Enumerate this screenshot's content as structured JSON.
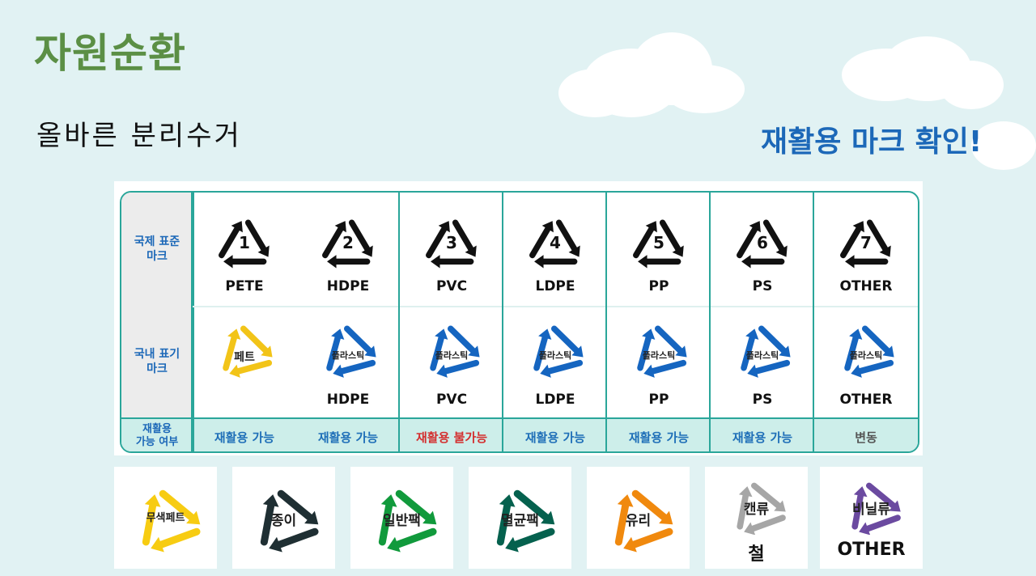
{
  "title": "자원순환",
  "subtitle": "올바른 분리수거",
  "callout": "재활용 마크 확인!",
  "table": {
    "row_labels": {
      "international": "국제 표준\n마크",
      "domestic": "국내 표기\n마크",
      "recyclable": "재활용\n가능 여부"
    },
    "international_marks": [
      {
        "number": "1",
        "label": "PETE"
      },
      {
        "number": "2",
        "label": "HDPE"
      },
      {
        "number": "3",
        "label": "PVC"
      },
      {
        "number": "4",
        "label": "LDPE"
      },
      {
        "number": "5",
        "label": "PP"
      },
      {
        "number": "6",
        "label": "PS"
      },
      {
        "number": "7",
        "label": "OTHER"
      }
    ],
    "domestic_marks": [
      {
        "text": "페트",
        "label": "",
        "color": "#f2c418"
      },
      {
        "text": "플라스틱",
        "label": "HDPE",
        "color": "#1565c0"
      },
      {
        "text": "플라스틱",
        "label": "PVC",
        "color": "#1565c0"
      },
      {
        "text": "플라스틱",
        "label": "LDPE",
        "color": "#1565c0"
      },
      {
        "text": "플라스틱",
        "label": "PP",
        "color": "#1565c0"
      },
      {
        "text": "플라스틱",
        "label": "PS",
        "color": "#1565c0"
      },
      {
        "text": "플라스틱",
        "label": "OTHER",
        "color": "#1565c0"
      }
    ],
    "status": [
      {
        "text": "재활용 가능",
        "color": "#1f6fb8"
      },
      {
        "text": "재활용 가능",
        "color": "#1f6fb8"
      },
      {
        "text": "재활용 불가능",
        "color": "#d32f2f"
      },
      {
        "text": "재활용 가능",
        "color": "#1f6fb8"
      },
      {
        "text": "재활용 가능",
        "color": "#1f6fb8"
      },
      {
        "text": "재활용 가능",
        "color": "#1f6fb8"
      },
      {
        "text": "변동",
        "color": "#555555"
      }
    ]
  },
  "cards": [
    {
      "text": "무색페트",
      "sub": "",
      "color": "#f7cc12"
    },
    {
      "text": "종이",
      "sub": "",
      "color": "#1f2f33"
    },
    {
      "text": "일반팩",
      "sub": "",
      "color": "#119a3c"
    },
    {
      "text": "멸균팩",
      "sub": "",
      "color": "#05614e"
    },
    {
      "text": "유리",
      "sub": "",
      "color": "#f0890e"
    },
    {
      "text": "캔류",
      "sub": "철",
      "color": "#a6a6a6"
    },
    {
      "text": "비닐류",
      "sub": "OTHER",
      "color": "#6b4aa0"
    }
  ]
}
